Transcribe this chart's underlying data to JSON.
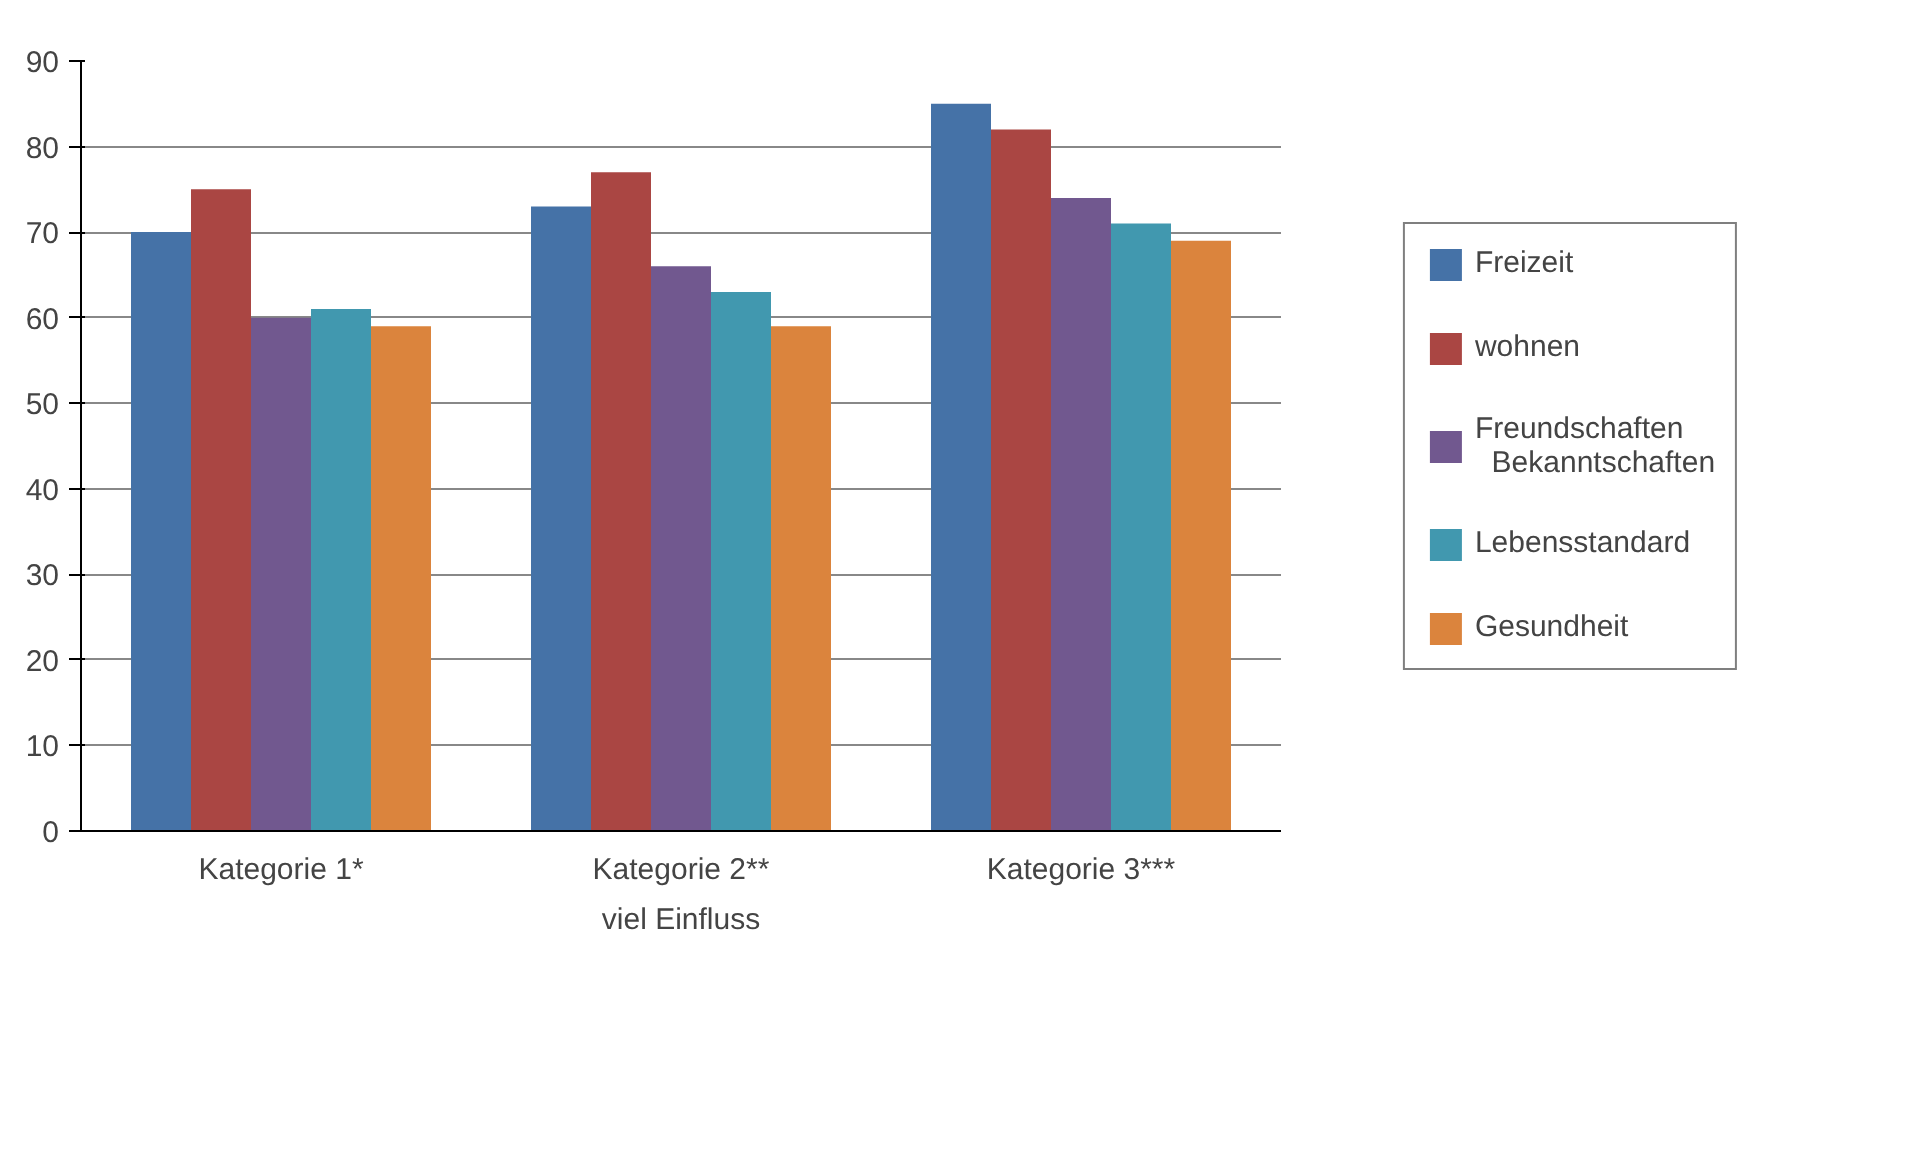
{
  "chart_data": {
    "type": "bar",
    "xlabel": "viel Einfluss",
    "categories": [
      "Kategorie 1*",
      "Kategorie 2**",
      "Kategorie 3***"
    ],
    "series": [
      {
        "name": "Freizeit",
        "color": "#4572a7",
        "values": [
          70,
          73,
          85
        ]
      },
      {
        "name": "wohnen",
        "color": "#aa4643",
        "values": [
          75,
          77,
          82
        ]
      },
      {
        "name": "Freundschaften Bekanntschaften",
        "color": "#71588f",
        "values": [
          60,
          66,
          74
        ]
      },
      {
        "name": "Lebensstandard",
        "color": "#4198af",
        "values": [
          61,
          63,
          71
        ]
      },
      {
        "name": "Gesundheit",
        "color": "#db843d",
        "values": [
          59,
          59,
          69
        ]
      }
    ],
    "ylim": [
      0,
      90
    ],
    "yticks": [
      0,
      10,
      20,
      30,
      40,
      50,
      60,
      70,
      80,
      90
    ],
    "grid": "y",
    "legend": "right"
  }
}
